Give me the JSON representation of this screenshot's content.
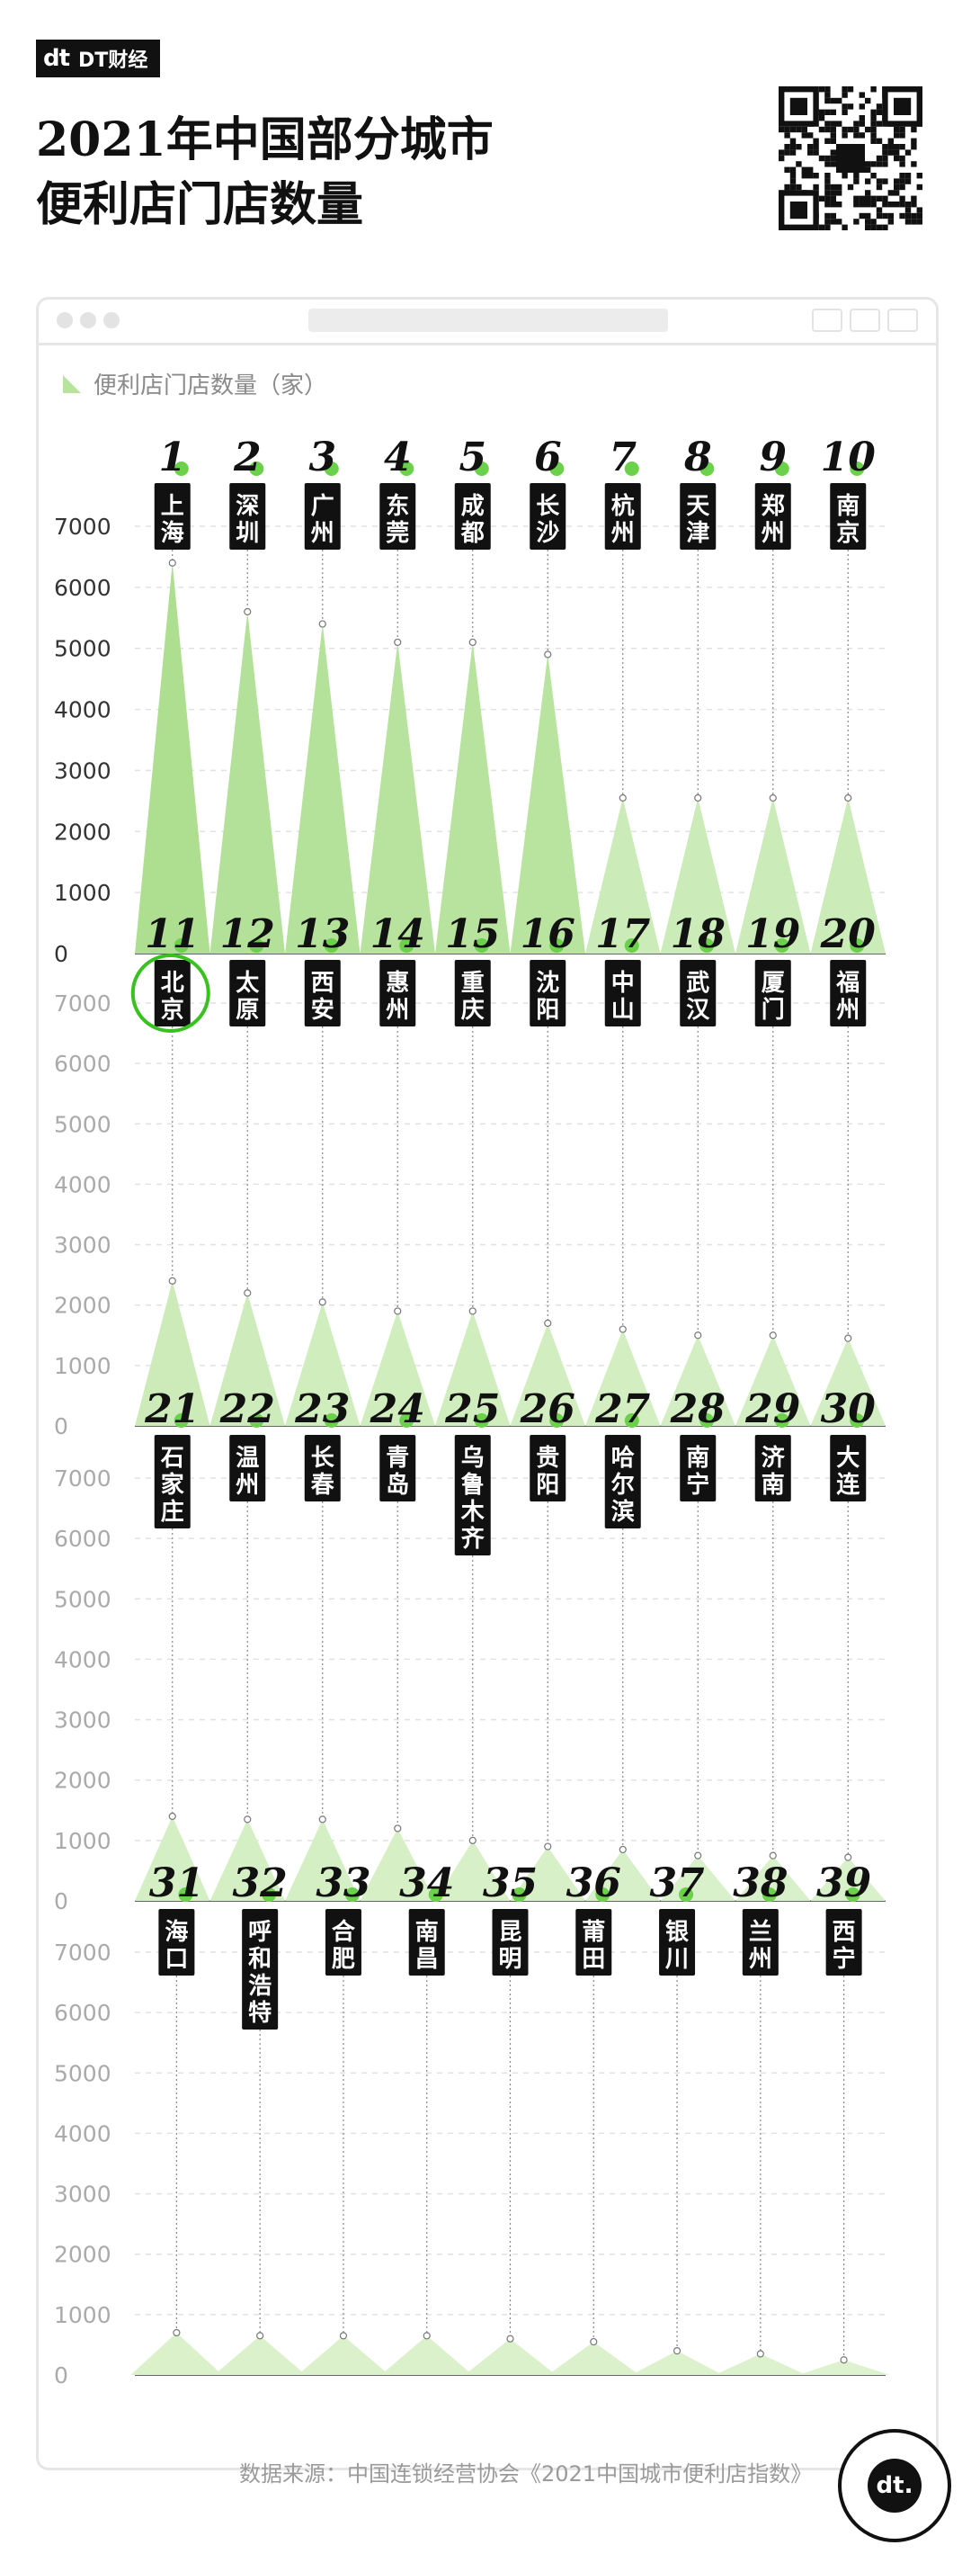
{
  "brand": {
    "logo": "dt",
    "label": "DT财经"
  },
  "title_line1": "2021年中国部分城市",
  "title_line2": "便利店门店数量",
  "legend_label": "便利店门店数量（家）",
  "source": "数据来源：中国连锁经营协会《2021中国城市便利店指数》",
  "badge_label": "dt.",
  "colors": {
    "accent_dot": "#6bd04a",
    "triangle_dark": "#a9dd8b",
    "triangle_light": "#dff3d1",
    "label_bg": "#111111",
    "highlight_ring": "#39c21f"
  },
  "chart_data": {
    "type": "area",
    "ylim": [
      0,
      7000
    ],
    "yticks": [
      0,
      1000,
      2000,
      3000,
      4000,
      5000,
      6000,
      7000
    ],
    "ylabel": "便利店门店数量（家）",
    "highlight_rank": 11,
    "categories": [
      "上海",
      "深圳",
      "广州",
      "东莞",
      "成都",
      "长沙",
      "杭州",
      "天津",
      "郑州",
      "南京",
      "北京",
      "太原",
      "西安",
      "惠州",
      "重庆",
      "沈阳",
      "中山",
      "武汉",
      "厦门",
      "福州",
      "石家庄",
      "温州",
      "长春",
      "青岛",
      "乌鲁木齐",
      "贵阳",
      "哈尔滨",
      "南宁",
      "济南",
      "大连",
      "海口",
      "呼和浩特",
      "合肥",
      "南昌",
      "昆明",
      "莆田",
      "银川",
      "兰州",
      "西宁"
    ],
    "series": [
      {
        "values": [
          6400,
          5600,
          5400,
          5100,
          5100,
          4900,
          2550,
          2550,
          2550,
          2550,
          2400,
          2200,
          2050,
          1900,
          1900,
          1700,
          1600,
          1500,
          1500,
          1450,
          1400,
          1350,
          1350,
          1200,
          1000,
          900,
          850,
          750,
          750,
          720,
          700,
          650,
          650,
          650,
          600,
          550,
          400,
          350,
          250
        ]
      }
    ]
  }
}
